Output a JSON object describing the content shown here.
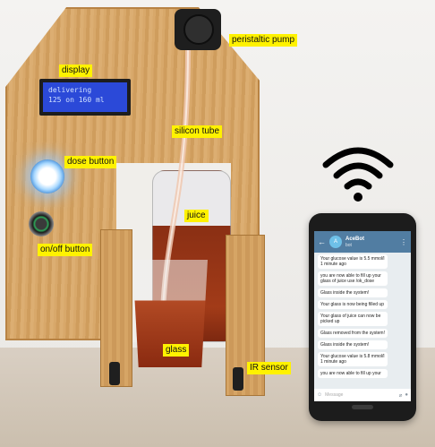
{
  "labels": {
    "display": "display",
    "peristaltic_pump": "peristaltic pump",
    "silicon_tube": "silicon tube",
    "dose_button": "dose button",
    "juice": "juice",
    "on_off_button": "on/off button",
    "glass": "glass",
    "ir_sensor": "IR sensor"
  },
  "lcd": {
    "line1": "delivering",
    "line2": "125 on 160 ml"
  },
  "phone": {
    "bot_name": "AceBot",
    "bot_status": "bot",
    "avatar_letter": "A",
    "input_placeholder": "Message",
    "messages": [
      {
        "text": "Your glucose value is 5.5 mmol/l 1 minute ago"
      },
      {
        "text": "you are now able to fill up your glass of juice use /ok_dose"
      },
      {
        "text": "Glass inside the system!"
      },
      {
        "text": "Your glass is now being filled up"
      },
      {
        "text": "Your glass of juice can now be picked up"
      },
      {
        "text": "Glass removed from the system!"
      },
      {
        "text": "Glass inside the system!"
      },
      {
        "text": "Your glucose value is 5.8 mmol/l 1 minute ago"
      },
      {
        "text": "you are now able to fill up your"
      }
    ]
  },
  "colors": {
    "label_bg": "#fff200",
    "lcd_bg": "#2b49d8",
    "telegram_header": "#517da2",
    "juice": "#a23b18"
  },
  "icons": {
    "wifi": "wifi-icon",
    "back": "back-arrow-icon",
    "menu": "more-vertical-icon",
    "emoji": "emoji-icon",
    "attach": "paperclip-icon",
    "mic": "microphone-icon"
  }
}
